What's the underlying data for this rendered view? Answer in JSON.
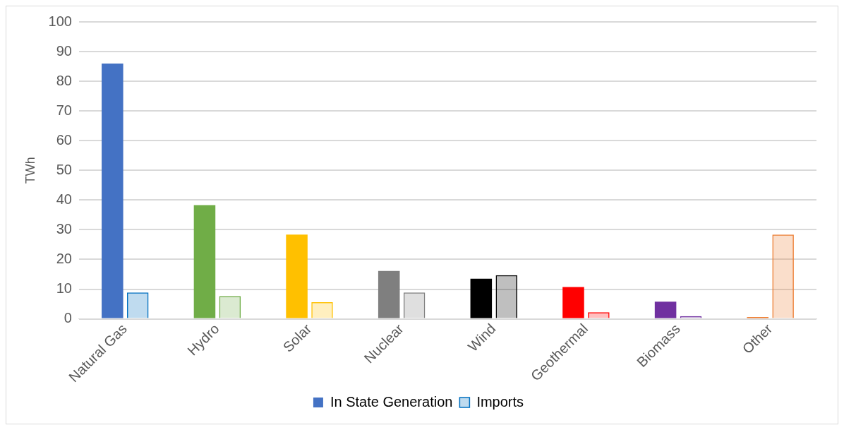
{
  "chart_data": {
    "type": "bar",
    "ylabel": "TWh",
    "categories": [
      "Natural Gas",
      "Hydro",
      "Solar",
      "Nuclear",
      "Wind",
      "Geothermal",
      "Biomass",
      "Other"
    ],
    "series": [
      {
        "name": "In State Generation",
        "colors": [
          "#4472c4",
          "#70ad47",
          "#ffc000",
          "#7f7f7f",
          "#000000",
          "#ff0000",
          "#7030a0",
          "#ed7d31"
        ],
        "values": [
          86,
          38.3,
          28.4,
          16.1,
          13.5,
          10.7,
          5.8,
          0.6
        ]
      },
      {
        "name": "Imports",
        "colors": [
          "#0070c0",
          "#70ad47",
          "#ffc000",
          "#7f7f7f",
          "#000000",
          "#ff0000",
          "#7030a0",
          "#ed7d31"
        ],
        "values": [
          8.9,
          7.7,
          5.6,
          8.9,
          14.7,
          2.2,
          0.9,
          28.4
        ]
      }
    ],
    "ylim": [
      0,
      100
    ],
    "yticks": [
      0,
      10,
      20,
      30,
      40,
      50,
      60,
      70,
      80,
      90,
      100
    ],
    "grid": "y",
    "legend": "bottom"
  }
}
